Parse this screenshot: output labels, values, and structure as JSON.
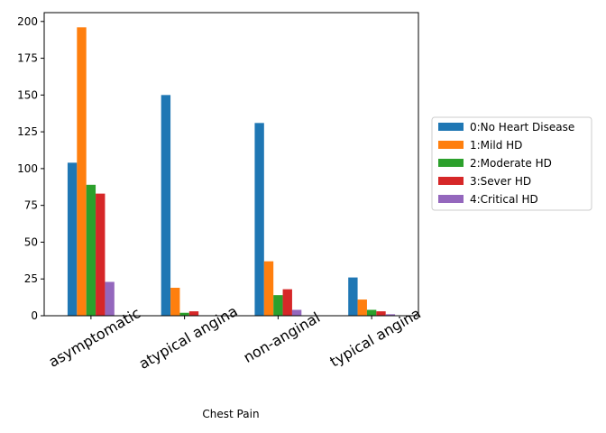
{
  "chart_data": {
    "type": "bar",
    "title": "",
    "xlabel": "Chest Pain",
    "ylabel": "",
    "categories": [
      "asymptomatic",
      "atypical angina",
      "non-anginal",
      "typical angina"
    ],
    "ylim": [
      0,
      206
    ],
    "yticks": [
      0,
      25,
      50,
      75,
      100,
      125,
      150,
      175,
      200
    ],
    "grid": false,
    "legend_position": "center-right (outside plot)",
    "series": [
      {
        "name": "0:No Heart Disease",
        "color": "#1f77b4",
        "values": [
          104,
          150,
          131,
          26
        ]
      },
      {
        "name": "1:Mild HD",
        "color": "#ff7f0e",
        "values": [
          196,
          19,
          37,
          11
        ]
      },
      {
        "name": "2:Moderate HD",
        "color": "#2ca02c",
        "values": [
          89,
          2,
          14,
          4
        ]
      },
      {
        "name": "3:Sever HD",
        "color": "#d62728",
        "values": [
          83,
          3,
          18,
          3
        ]
      },
      {
        "name": "4:Critical HD",
        "color": "#9467bd",
        "values": [
          23,
          0,
          4,
          1
        ]
      }
    ]
  }
}
